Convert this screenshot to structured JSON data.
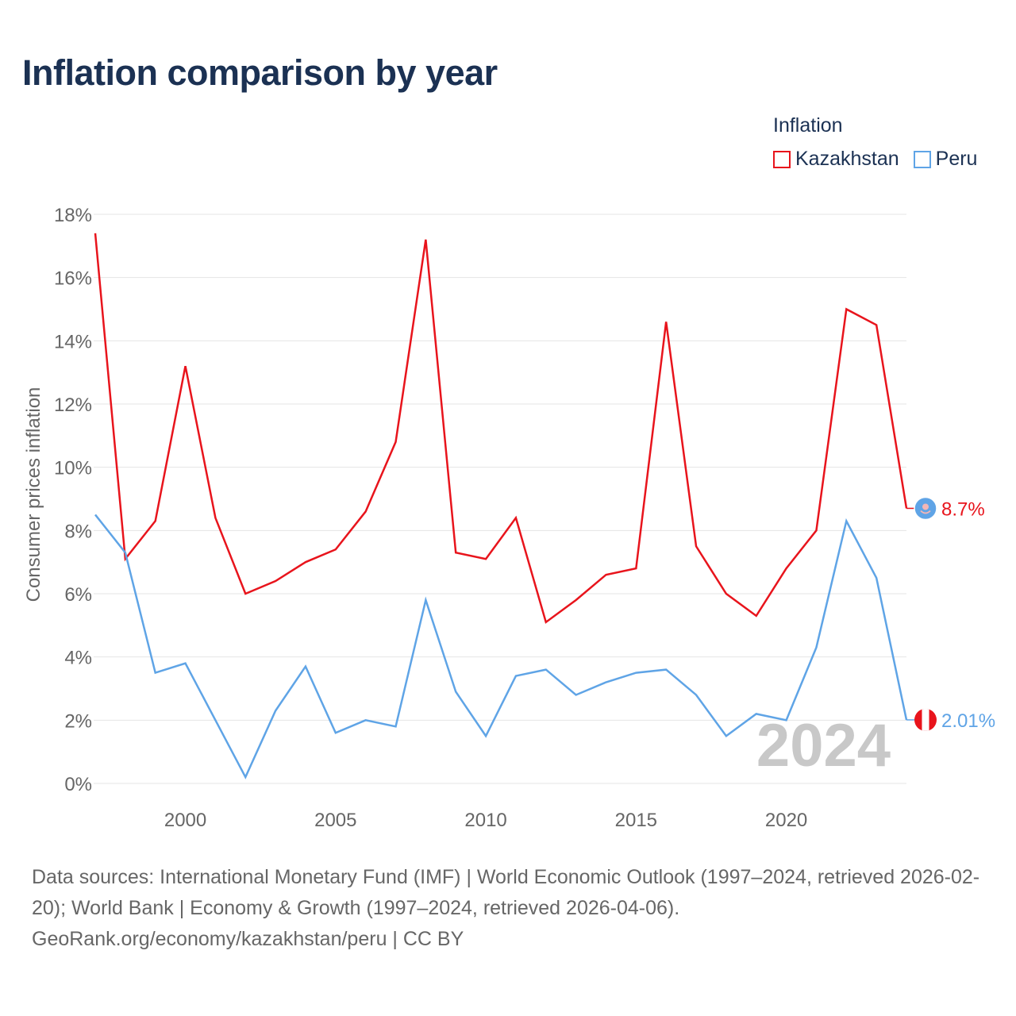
{
  "title": "Inflation comparison by year",
  "legend": {
    "title": "Inflation",
    "items": [
      {
        "label": "Kazakhstan",
        "color": "#e8141c"
      },
      {
        "label": "Peru",
        "color": "#5fa4e6"
      }
    ]
  },
  "chart_data": {
    "type": "line",
    "title": "Inflation comparison by year",
    "xlabel": "",
    "ylabel": "Consumer prices inflation",
    "xlim": [
      1997,
      2024
    ],
    "ylim": [
      0,
      18
    ],
    "yticks": [
      0,
      2,
      4,
      6,
      8,
      10,
      12,
      14,
      16,
      18
    ],
    "ytick_labels": [
      "0%",
      "2%",
      "4%",
      "6%",
      "8%",
      "10%",
      "12%",
      "14%",
      "16%",
      "18%"
    ],
    "xticks": [
      2000,
      2005,
      2010,
      2015,
      2020
    ],
    "xtick_labels": [
      "2000",
      "2005",
      "2010",
      "2015",
      "2020"
    ],
    "grid": true,
    "legend_position": "top-right",
    "watermark_year": "2024",
    "x": [
      1997,
      1998,
      1999,
      2000,
      2001,
      2002,
      2003,
      2004,
      2005,
      2006,
      2007,
      2008,
      2009,
      2010,
      2011,
      2012,
      2013,
      2014,
      2015,
      2016,
      2017,
      2018,
      2019,
      2020,
      2021,
      2022,
      2023,
      2024
    ],
    "series": [
      {
        "name": "Kazakhstan",
        "color": "#e8141c",
        "end_label": "8.7%",
        "values": [
          17.4,
          7.1,
          8.3,
          13.2,
          8.4,
          6.0,
          6.4,
          7.0,
          7.4,
          8.6,
          10.8,
          17.2,
          7.3,
          7.1,
          8.4,
          5.1,
          5.8,
          6.6,
          6.8,
          14.6,
          7.5,
          6.0,
          5.3,
          6.8,
          8.0,
          15.0,
          14.5,
          8.7
        ]
      },
      {
        "name": "Peru",
        "color": "#5fa4e6",
        "end_label": "2.01%",
        "values": [
          8.5,
          7.3,
          3.5,
          3.8,
          2.0,
          0.2,
          2.3,
          3.7,
          1.6,
          2.0,
          1.8,
          5.8,
          2.9,
          1.5,
          3.4,
          3.6,
          2.8,
          3.2,
          3.5,
          3.6,
          2.8,
          1.5,
          2.2,
          2.0,
          4.3,
          8.3,
          6.5,
          2.01
        ]
      }
    ]
  },
  "footer": {
    "sources": "Data sources: International Monetary Fund (IMF) | World Economic Outlook (1997–2024, retrieved 2026-02-20); World Bank | Economy & Growth (1997–2024, retrieved 2026-04-06).",
    "credit": "GeoRank.org/economy/kazakhstan/peru | CC BY"
  }
}
